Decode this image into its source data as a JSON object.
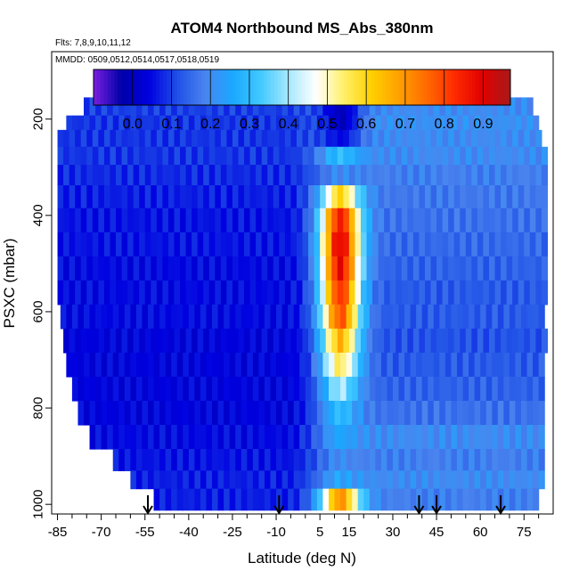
{
  "chart_data": {
    "type": "heatmap",
    "title": "ATOM4 Northbound MS_Abs_380nm",
    "subtitle_flights": "Flts: 7,8,9,10,11,12",
    "subtitle_dates": "MMDD: 0509,0512,0514,0517,0518,0519",
    "xlabel": "Latitude (deg N)",
    "ylabel": "PSXC (mbar)",
    "xlim": [
      -87,
      85
    ],
    "ylim": [
      1020,
      60
    ],
    "y_reversed": true,
    "x_ticks": [
      -85,
      -70,
      -55,
      -40,
      -25,
      -10,
      5,
      15,
      30,
      45,
      60,
      75
    ],
    "x_minor_step": 5,
    "y_ticks": [
      200,
      400,
      600,
      800,
      1000
    ],
    "colorbar": {
      "ticks": [
        0.0,
        0.1,
        0.2,
        0.3,
        0.4,
        0.5,
        0.6,
        0.7,
        0.8,
        0.9
      ],
      "tick_labels": [
        "0.0",
        "0.1",
        "0.2",
        "0.3",
        "0.4",
        "0.5",
        "0.6",
        "0.7",
        "0.8",
        "0.9"
      ],
      "range": [
        -0.1,
        0.97
      ],
      "colors": [
        "#7a1fe0",
        "#0000a8",
        "#0000e0",
        "#1f4fe6",
        "#4a84ee",
        "#1aa8ff",
        "#40c8ff",
        "#a6e8ff",
        "#ffffff",
        "#fff06a",
        "#ffd000",
        "#ffa000",
        "#ff6a00",
        "#ff2a00",
        "#e00000",
        "#a81a1a"
      ]
    },
    "arrows_latitude": [
      -54,
      -9,
      39,
      45,
      67
    ],
    "grid": false,
    "rows": [
      {
        "p": 180,
        "xmin": -76,
        "xmax": 77,
        "base": 0.1,
        "east": 0.2,
        "blob": 0.0
      },
      {
        "p": 205,
        "xmin": -82,
        "xmax": 80,
        "base": 0.09,
        "east": 0.21,
        "blob": 0.0
      },
      {
        "p": 240,
        "xmin": -85,
        "xmax": 80,
        "base": 0.09,
        "east": 0.2,
        "blob": 0.05
      },
      {
        "p": 275,
        "xmin": -85,
        "xmax": 82,
        "base": 0.09,
        "east": 0.2,
        "blob": 0.3
      },
      {
        "p": 315,
        "xmin": -85,
        "xmax": 82,
        "base": 0.08,
        "east": 0.18,
        "blob": 0.2
      },
      {
        "p": 360,
        "xmin": -85,
        "xmax": 82,
        "base": 0.07,
        "east": 0.17,
        "blob": 0.6
      },
      {
        "p": 410,
        "xmin": -85,
        "xmax": 82,
        "base": 0.06,
        "east": 0.16,
        "blob": 0.85
      },
      {
        "p": 460,
        "xmin": -85,
        "xmax": 82,
        "base": 0.06,
        "east": 0.15,
        "blob": 0.9
      },
      {
        "p": 510,
        "xmin": -85,
        "xmax": 82,
        "base": 0.05,
        "east": 0.14,
        "blob": 0.88
      },
      {
        "p": 560,
        "xmin": -85,
        "xmax": 82,
        "base": 0.05,
        "east": 0.13,
        "blob": 0.82
      },
      {
        "p": 610,
        "xmin": -84,
        "xmax": 82,
        "base": 0.05,
        "east": 0.13,
        "blob": 0.78
      },
      {
        "p": 660,
        "xmin": -83,
        "xmax": 82,
        "base": 0.04,
        "east": 0.12,
        "blob": 0.65
      },
      {
        "p": 710,
        "xmin": -82,
        "xmax": 82,
        "base": 0.04,
        "east": 0.13,
        "blob": 0.55
      },
      {
        "p": 760,
        "xmin": -80,
        "xmax": 82,
        "base": 0.04,
        "east": 0.14,
        "blob": 0.4
      },
      {
        "p": 810,
        "xmin": -78,
        "xmax": 82,
        "base": 0.04,
        "east": 0.16,
        "blob": 0.3
      },
      {
        "p": 860,
        "xmin": -74,
        "xmax": 82,
        "base": 0.05,
        "east": 0.2,
        "blob": 0.25
      },
      {
        "p": 910,
        "xmin": -66,
        "xmax": 82,
        "base": 0.06,
        "east": 0.18,
        "blob": 0.2
      },
      {
        "p": 950,
        "xmin": -60,
        "xmax": 82,
        "base": 0.07,
        "east": 0.2,
        "blob": 0.25
      },
      {
        "p": 985,
        "xmin": -52,
        "xmax": 79,
        "base": 0.07,
        "east": 0.18,
        "blob": 0.7
      }
    ]
  }
}
